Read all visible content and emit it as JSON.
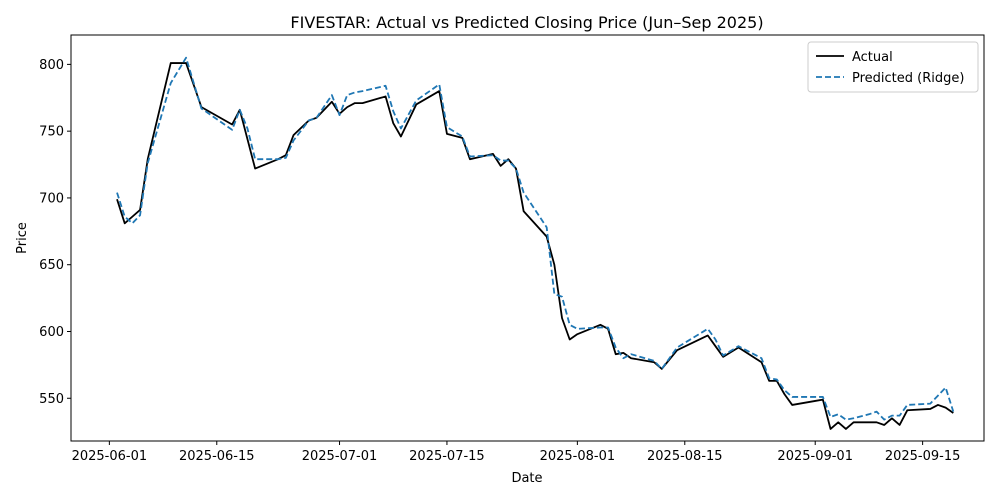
{
  "chart_data": {
    "type": "line",
    "title": "FIVESTAR: Actual vs Predicted Closing Price (Jun–Sep 2025)",
    "xlabel": "Date",
    "ylabel": "Price",
    "xlim": [
      "2025-05-27",
      "2025-09-23"
    ],
    "ylim": [
      518,
      822
    ],
    "x_ticks": [
      "2025-06-01",
      "2025-06-15",
      "2025-07-01",
      "2025-07-15",
      "2025-08-01",
      "2025-08-15",
      "2025-09-01",
      "2025-09-15"
    ],
    "y_ticks": [
      550,
      600,
      650,
      700,
      750,
      800
    ],
    "grid": false,
    "legend_position": "top-right",
    "series": [
      {
        "name": "Actual",
        "color": "#000000",
        "style": "solid",
        "points": [
          [
            "2025-06-02",
            699
          ],
          [
            "2025-06-03",
            681
          ],
          [
            "2025-06-04",
            686
          ],
          [
            "2025-06-05",
            691
          ],
          [
            "2025-06-06",
            729
          ],
          [
            "2025-06-09",
            801
          ],
          [
            "2025-06-11",
            801
          ],
          [
            "2025-06-13",
            768
          ],
          [
            "2025-06-17",
            755
          ],
          [
            "2025-06-18",
            766
          ],
          [
            "2025-06-20",
            722
          ],
          [
            "2025-06-23",
            729
          ],
          [
            "2025-06-24",
            732
          ],
          [
            "2025-06-25",
            747
          ],
          [
            "2025-06-27",
            758
          ],
          [
            "2025-06-28",
            760
          ],
          [
            "2025-06-30",
            772
          ],
          [
            "2025-07-01",
            763
          ],
          [
            "2025-07-02",
            768
          ],
          [
            "2025-07-03",
            771
          ],
          [
            "2025-07-04",
            771
          ],
          [
            "2025-07-07",
            776
          ],
          [
            "2025-07-08",
            756
          ],
          [
            "2025-07-09",
            746
          ],
          [
            "2025-07-11",
            770
          ],
          [
            "2025-07-14",
            780
          ],
          [
            "2025-07-15",
            748
          ],
          [
            "2025-07-17",
            745
          ],
          [
            "2025-07-18",
            729
          ],
          [
            "2025-07-21",
            733
          ],
          [
            "2025-07-22",
            724
          ],
          [
            "2025-07-23",
            729
          ],
          [
            "2025-07-24",
            722
          ],
          [
            "2025-07-25",
            690
          ],
          [
            "2025-07-28",
            671
          ],
          [
            "2025-07-29",
            650
          ],
          [
            "2025-07-30",
            610
          ],
          [
            "2025-07-31",
            594
          ],
          [
            "2025-08-01",
            598
          ],
          [
            "2025-08-04",
            605
          ],
          [
            "2025-08-05",
            602
          ],
          [
            "2025-08-06",
            583
          ],
          [
            "2025-08-07",
            584
          ],
          [
            "2025-08-08",
            580
          ],
          [
            "2025-08-11",
            577
          ],
          [
            "2025-08-12",
            572
          ],
          [
            "2025-08-14",
            586
          ],
          [
            "2025-08-18",
            597
          ],
          [
            "2025-08-19",
            589
          ],
          [
            "2025-08-20",
            581
          ],
          [
            "2025-08-22",
            588
          ],
          [
            "2025-08-25",
            577
          ],
          [
            "2025-08-26",
            563
          ],
          [
            "2025-08-27",
            563
          ],
          [
            "2025-08-28",
            553
          ],
          [
            "2025-08-29",
            545
          ],
          [
            "2025-09-01",
            548
          ],
          [
            "2025-09-02",
            549
          ],
          [
            "2025-09-03",
            527
          ],
          [
            "2025-09-04",
            532
          ],
          [
            "2025-09-05",
            527
          ],
          [
            "2025-09-06",
            532
          ],
          [
            "2025-09-08",
            532
          ],
          [
            "2025-09-09",
            532
          ],
          [
            "2025-09-10",
            530
          ],
          [
            "2025-09-11",
            535
          ],
          [
            "2025-09-12",
            530
          ],
          [
            "2025-09-13",
            541
          ],
          [
            "2025-09-16",
            542
          ],
          [
            "2025-09-17",
            545
          ],
          [
            "2025-09-18",
            543
          ],
          [
            "2025-09-19",
            539
          ]
        ]
      },
      {
        "name": "Predicted (Ridge)",
        "color": "#1f77b4",
        "style": "dashed",
        "points": [
          [
            "2025-06-02",
            704
          ],
          [
            "2025-06-03",
            686
          ],
          [
            "2025-06-04",
            681
          ],
          [
            "2025-06-05",
            687
          ],
          [
            "2025-06-06",
            726
          ],
          [
            "2025-06-09",
            786
          ],
          [
            "2025-06-11",
            805
          ],
          [
            "2025-06-13",
            767
          ],
          [
            "2025-06-17",
            751
          ],
          [
            "2025-06-18",
            766
          ],
          [
            "2025-06-19",
            752
          ],
          [
            "2025-06-20",
            729
          ],
          [
            "2025-06-23",
            729
          ],
          [
            "2025-06-24",
            730
          ],
          [
            "2025-06-25",
            743
          ],
          [
            "2025-06-27",
            758
          ],
          [
            "2025-06-28",
            760
          ],
          [
            "2025-06-30",
            777
          ],
          [
            "2025-07-01",
            762
          ],
          [
            "2025-07-02",
            777
          ],
          [
            "2025-07-03",
            779
          ],
          [
            "2025-07-04",
            780
          ],
          [
            "2025-07-07",
            784
          ],
          [
            "2025-07-08",
            765
          ],
          [
            "2025-07-09",
            752
          ],
          [
            "2025-07-11",
            773
          ],
          [
            "2025-07-14",
            785
          ],
          [
            "2025-07-15",
            753
          ],
          [
            "2025-07-17",
            746
          ],
          [
            "2025-07-18",
            731
          ],
          [
            "2025-07-21",
            732
          ],
          [
            "2025-07-22",
            728
          ],
          [
            "2025-07-23",
            728
          ],
          [
            "2025-07-24",
            722
          ],
          [
            "2025-07-25",
            704
          ],
          [
            "2025-07-28",
            678
          ],
          [
            "2025-07-29",
            628
          ],
          [
            "2025-07-30",
            626
          ],
          [
            "2025-07-31",
            605
          ],
          [
            "2025-08-01",
            602
          ],
          [
            "2025-08-04",
            603
          ],
          [
            "2025-08-05",
            603
          ],
          [
            "2025-08-06",
            588
          ],
          [
            "2025-08-07",
            580
          ],
          [
            "2025-08-08",
            583
          ],
          [
            "2025-08-11",
            578
          ],
          [
            "2025-08-12",
            572
          ],
          [
            "2025-08-14",
            588
          ],
          [
            "2025-08-18",
            602
          ],
          [
            "2025-08-19",
            594
          ],
          [
            "2025-08-20",
            582
          ],
          [
            "2025-08-22",
            589
          ],
          [
            "2025-08-25",
            580
          ],
          [
            "2025-08-26",
            565
          ],
          [
            "2025-08-27",
            564
          ],
          [
            "2025-08-28",
            556
          ],
          [
            "2025-08-29",
            551
          ],
          [
            "2025-09-01",
            551
          ],
          [
            "2025-09-02",
            551
          ],
          [
            "2025-09-03",
            536
          ],
          [
            "2025-09-04",
            538
          ],
          [
            "2025-09-05",
            534
          ],
          [
            "2025-09-06",
            535
          ],
          [
            "2025-09-08",
            538
          ],
          [
            "2025-09-09",
            540
          ],
          [
            "2025-09-10",
            534
          ],
          [
            "2025-09-11",
            537
          ],
          [
            "2025-09-12",
            537
          ],
          [
            "2025-09-13",
            545
          ],
          [
            "2025-09-16",
            546
          ],
          [
            "2025-09-17",
            552
          ],
          [
            "2025-09-18",
            558
          ],
          [
            "2025-09-19",
            540
          ]
        ]
      }
    ]
  }
}
